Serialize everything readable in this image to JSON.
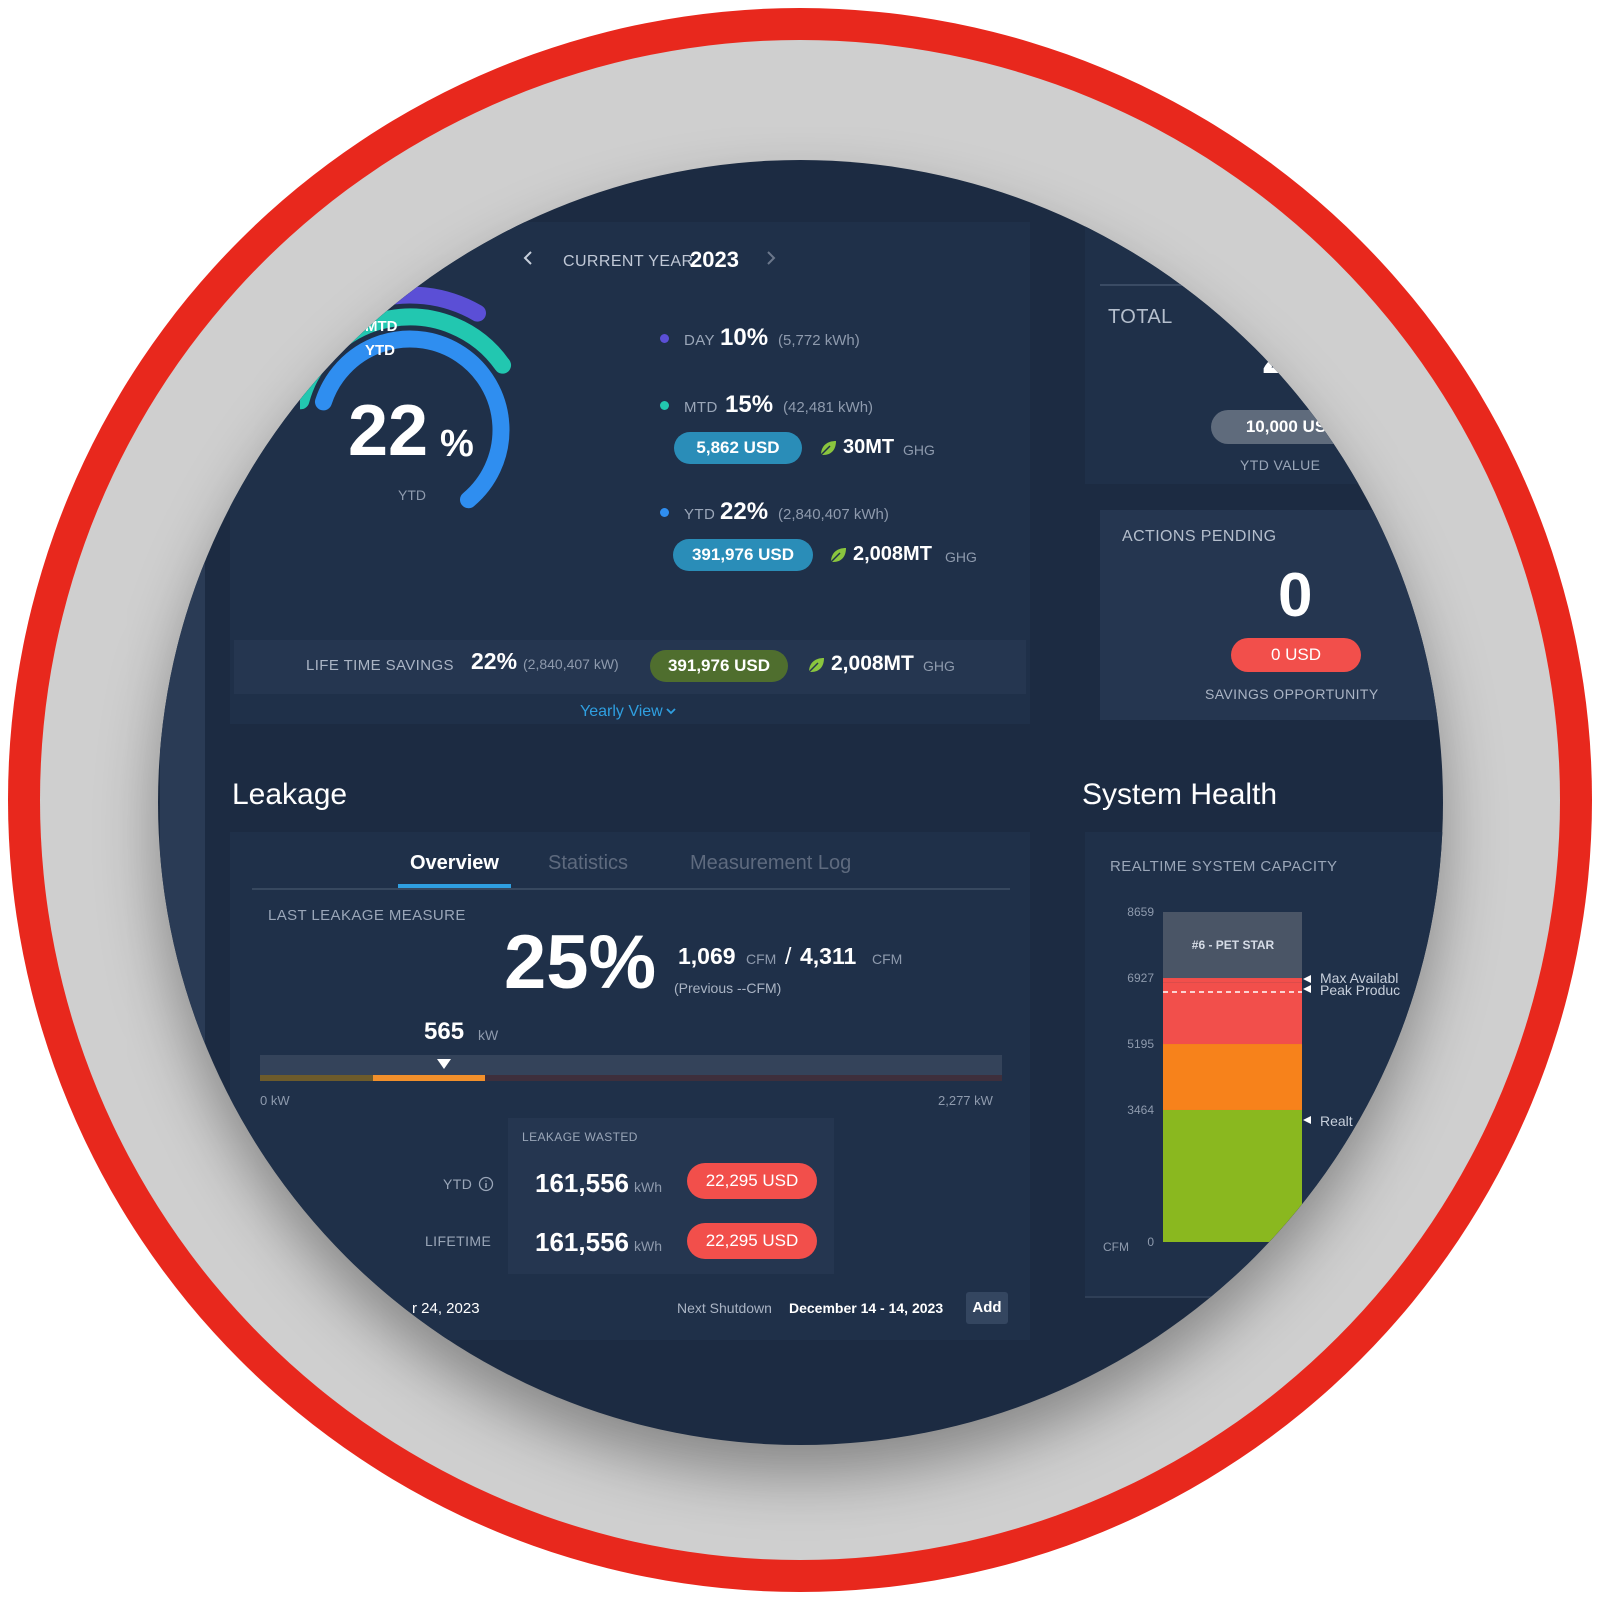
{
  "year_nav": {
    "label": "CURRENT YEAR",
    "year": "2023",
    "prev_icon": "chevron-left-icon",
    "next_icon": "chevron-right-icon"
  },
  "gauge": {
    "mtd_label": "MTD",
    "ytd_label": "YTD",
    "value": "22",
    "unit": "%",
    "caption": "YTD",
    "colors": {
      "day": "#5b4fd6",
      "mtd": "#22c7b0",
      "ytd": "#2f8ef0"
    }
  },
  "metrics": {
    "day": {
      "label": "DAY",
      "pct": "10%",
      "kwh": "(5,772 kWh)"
    },
    "mtd": {
      "label": "MTD",
      "pct": "15%",
      "kwh": "(42,481 kWh)",
      "usd": "5,862 USD",
      "ghg": "30MT",
      "ghg_unit": "GHG"
    },
    "ytd": {
      "label": "YTD",
      "pct": "22%",
      "kwh": "(2,840,407 kWh)",
      "usd": "391,976 USD",
      "ghg": "2,008MT",
      "ghg_unit": "GHG"
    }
  },
  "lifetime": {
    "label": "LIFE TIME SAVINGS",
    "pct": "22%",
    "kwh": "(2,840,407 kW)",
    "usd": "391,976 USD",
    "ghg": "2,008MT",
    "ghg_unit": "GHG",
    "view_link": "Yearly View"
  },
  "total": {
    "label": "TOTAL",
    "value_partial": "2",
    "usd": "10,000 US",
    "caption": "YTD VALUE"
  },
  "actions": {
    "label": "ACTIONS PENDING",
    "count": "0",
    "usd": "0 USD",
    "caption": "SAVINGS OPPORTUNITY"
  },
  "leakage": {
    "title": "Leakage",
    "tabs": [
      "Overview",
      "Statistics",
      "Measurement Log"
    ],
    "last_label": "LAST LEAKAGE MEASURE",
    "pct": "25%",
    "cfm_a": "1,069",
    "cfm_unit": "CFM",
    "sep": "/",
    "cfm_b": "4,311",
    "previous": "(Previous --CFM)",
    "kw_value": "565",
    "kw_unit": "kW",
    "range_min": "0 kW",
    "range_max": "2,277 kW",
    "marker_fraction": 0.248,
    "wasted": {
      "label": "LEAKAGE WASTED",
      "ytd_label": "YTD",
      "ytd_kwh": "161,556",
      "ytd_usd": "22,295 USD",
      "life_label": "LIFETIME",
      "life_kwh": "161,556",
      "life_usd": "22,295 USD",
      "kwh_unit": "kWh"
    },
    "footer_left": "r 24, 2023",
    "next_label": "Next Shutdown",
    "next_dates": "December 14 - 14, 2023",
    "add_button": "Add"
  },
  "system_health": {
    "title": "System Health",
    "capacity_label": "REALTIME SYSTEM CAPACITY",
    "axis_unit": "CFM",
    "bar_label": "#6 - PET STAR",
    "marker_max": "Max Availabl",
    "marker_peak": "Peak Produc",
    "marker_real": "Realt"
  },
  "chart_data": {
    "type": "bar",
    "categories": [
      "#6 - PET STAR"
    ],
    "y_ticks": [
      "8659",
      "6927",
      "5195",
      "3464",
      "0"
    ],
    "ylim": [
      0,
      8659
    ],
    "segments": [
      {
        "from": 0,
        "to": 3464,
        "color": "#8ab81f"
      },
      {
        "from": 3464,
        "to": 5195,
        "color": "#f7821b"
      },
      {
        "from": 5195,
        "to": 6800,
        "color": "#f24f4b"
      },
      {
        "from": 6800,
        "to": 6927,
        "color": "#f24f4b"
      },
      {
        "from": 6927,
        "to": 8659,
        "color": "#4a5566"
      }
    ]
  }
}
